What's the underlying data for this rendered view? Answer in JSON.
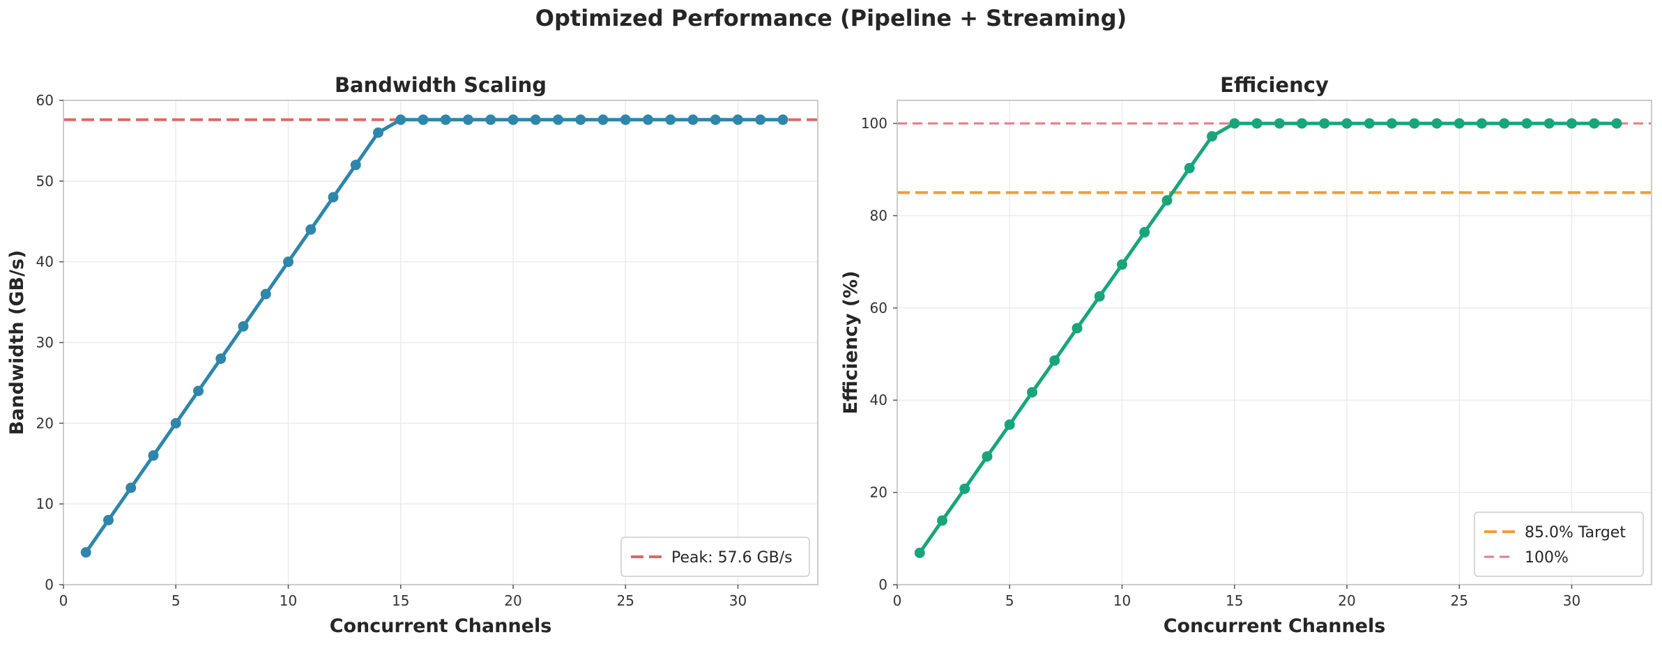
{
  "figure": {
    "title": "Optimized Performance (Pipeline + Streaming)"
  },
  "chart_data": [
    {
      "type": "line",
      "title": "Bandwidth Scaling",
      "xlabel": "Concurrent Channels",
      "ylabel": "Bandwidth (GB/s)",
      "xlim": [
        0,
        33.55
      ],
      "ylim": [
        0,
        60
      ],
      "xticks": [
        0,
        5,
        10,
        15,
        20,
        25,
        30
      ],
      "yticks": [
        0,
        10,
        20,
        30,
        40,
        50,
        60
      ],
      "grid": true,
      "legend": "lower-right",
      "series": [
        {
          "color": "#2e86ab",
          "marker": "circle",
          "x": [
            1,
            2,
            3,
            4,
            5,
            6,
            7,
            8,
            9,
            10,
            11,
            12,
            13,
            14,
            15,
            16,
            17,
            18,
            19,
            20,
            21,
            22,
            23,
            24,
            25,
            26,
            27,
            28,
            29,
            30,
            31,
            32
          ],
          "y": [
            4,
            8,
            12,
            16,
            20,
            24,
            28,
            32,
            36,
            40,
            44,
            48,
            52,
            56,
            57.6,
            57.6,
            57.6,
            57.6,
            57.6,
            57.6,
            57.6,
            57.6,
            57.6,
            57.6,
            57.6,
            57.6,
            57.6,
            57.6,
            57.6,
            57.6,
            57.6,
            57.6
          ]
        }
      ],
      "reference_lines": [
        {
          "name": "Peak: 57.6 GB/s",
          "y": 57.6,
          "color": "#e06666",
          "style": "dashed",
          "in_legend": true
        }
      ]
    },
    {
      "type": "line",
      "title": "Efficiency",
      "xlabel": "Concurrent Channels",
      "ylabel": "Efficiency (%)",
      "xlim": [
        0,
        33.55
      ],
      "ylim": [
        0,
        105
      ],
      "xticks": [
        0,
        5,
        10,
        15,
        20,
        25,
        30
      ],
      "yticks": [
        0,
        20,
        40,
        60,
        80,
        100
      ],
      "grid": true,
      "legend": "lower-right",
      "series": [
        {
          "color": "#18a57b",
          "marker": "circle",
          "x": [
            1,
            2,
            3,
            4,
            5,
            6,
            7,
            8,
            9,
            10,
            11,
            12,
            13,
            14,
            15,
            16,
            17,
            18,
            19,
            20,
            21,
            22,
            23,
            24,
            25,
            26,
            27,
            28,
            29,
            30,
            31,
            32
          ],
          "y": [
            6.9,
            13.9,
            20.8,
            27.8,
            34.7,
            41.7,
            48.6,
            55.6,
            62.5,
            69.4,
            76.4,
            83.3,
            90.3,
            97.2,
            100,
            100,
            100,
            100,
            100,
            100,
            100,
            100,
            100,
            100,
            100,
            100,
            100,
            100,
            100,
            100,
            100,
            100
          ]
        }
      ],
      "reference_lines": [
        {
          "name": "85.0% Target",
          "y": 85,
          "color": "#f39c34",
          "style": "dashed",
          "in_legend": true
        },
        {
          "name": "100%",
          "y": 100,
          "color": "#e67a84",
          "style": "dashed-thin",
          "in_legend": true
        }
      ]
    }
  ]
}
